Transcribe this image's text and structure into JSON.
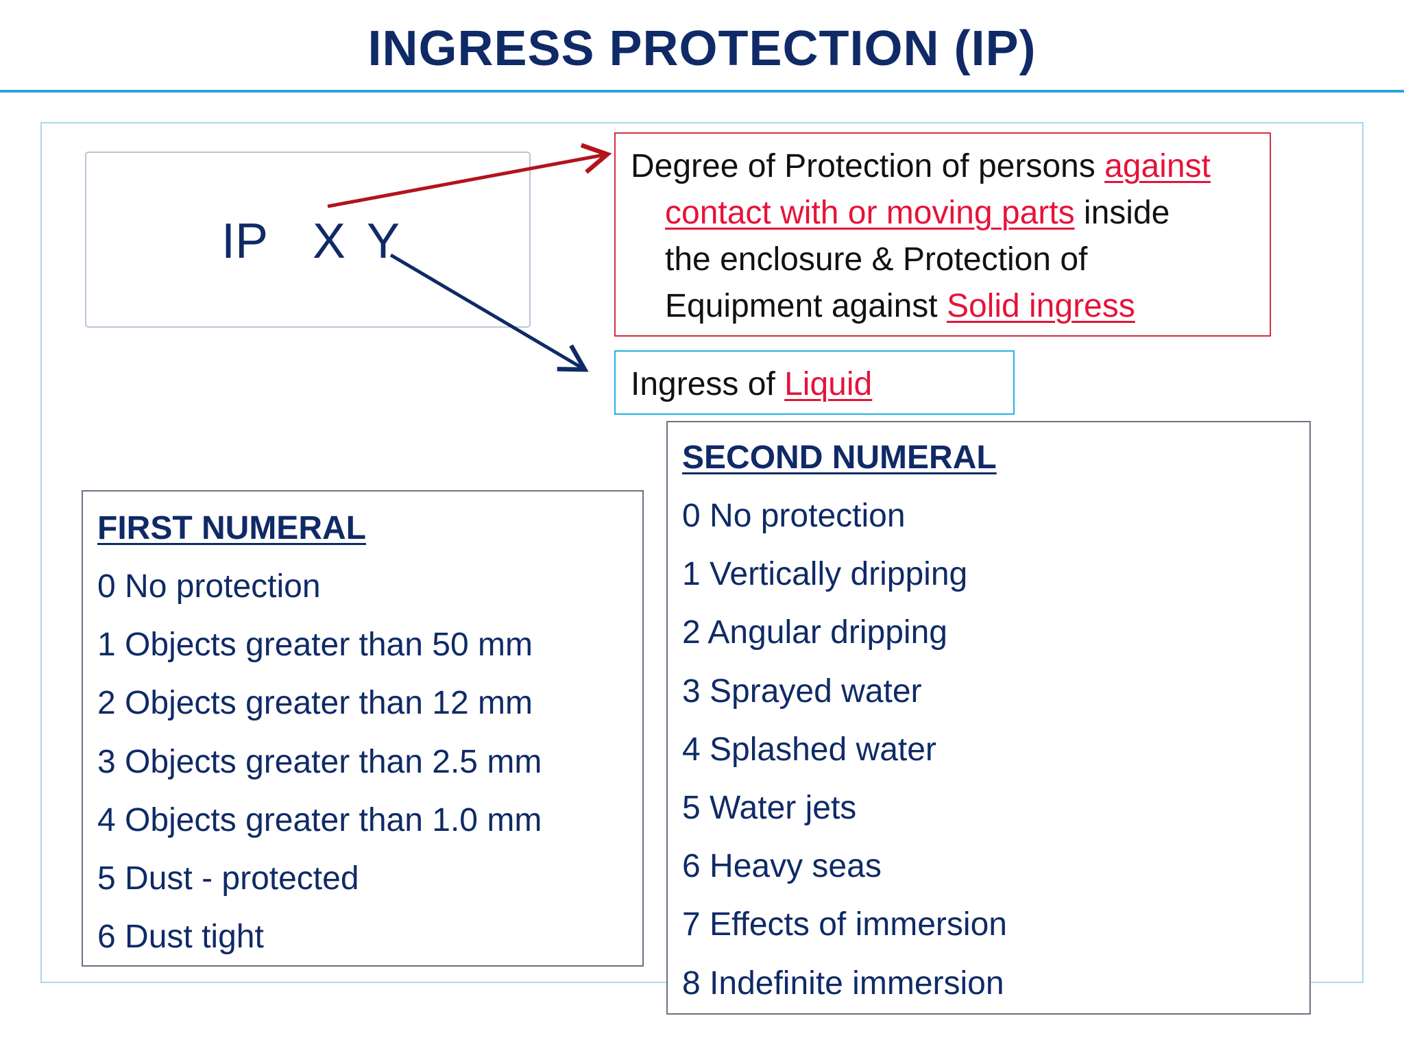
{
  "title": "INGRESS PROTECTION (IP)",
  "code": {
    "prefix": "IP",
    "first": "X",
    "second": "Y"
  },
  "first_description": {
    "line1_plain": "Degree of Protection of persons ",
    "line1_highlight": "against",
    "line2_highlight": "contact with or moving parts",
    "line2_plain": " inside",
    "line3_plain": "the enclosure & Protection of",
    "line4_plain": "Equipment against ",
    "line4_highlight": "Solid ingress"
  },
  "second_description": {
    "plain": "Ingress of ",
    "highlight": "Liquid"
  },
  "first_numeral": {
    "heading": "FIRST NUMERAL",
    "items": [
      "0  No protection",
      "1 Objects greater than 50 mm",
      "2 Objects greater than 12 mm",
      "3 Objects greater than 2.5 mm",
      "4 Objects greater than 1.0 mm",
      "5 Dust - protected",
      "6 Dust tight"
    ]
  },
  "second_numeral": {
    "heading": "SECOND NUMERAL",
    "items": [
      "0  No protection",
      "1 Vertically dripping",
      "2 Angular dripping",
      "3 Sprayed water",
      "4 Splashed water",
      "5 Water jets",
      "6 Heavy seas",
      "7 Effects of immersion",
      "8 Indefinite immersion"
    ]
  },
  "colors": {
    "title": "#0f2a66",
    "accent_red": "#e5133a",
    "red_arrow": "#b3131d",
    "blue_arrow": "#0f2a66",
    "rule": "#2ba3da"
  }
}
